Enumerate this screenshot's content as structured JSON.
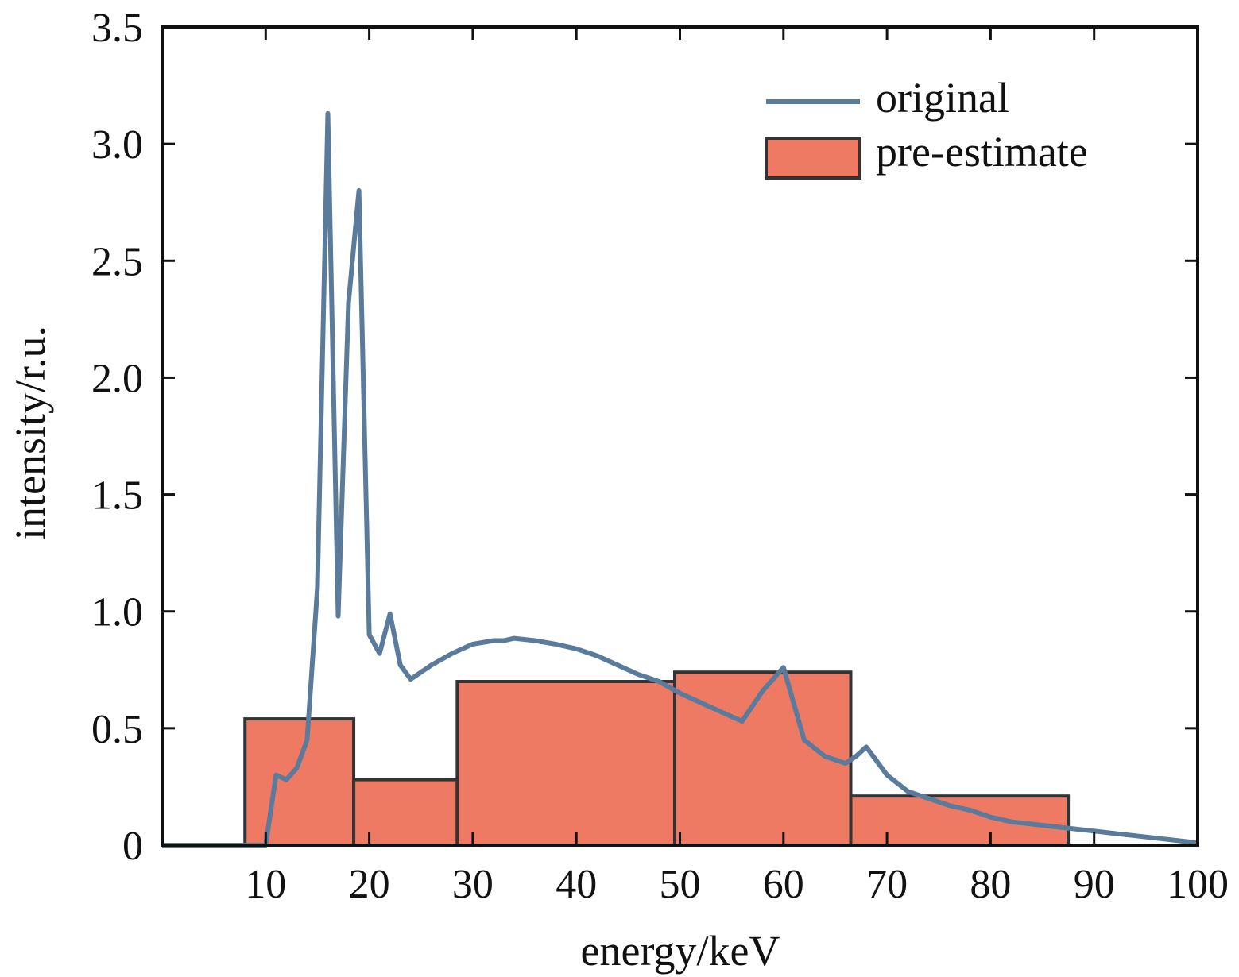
{
  "chart_data": {
    "type": "bar",
    "xlabel": "energy/keV",
    "ylabel": "intensity/r.u.",
    "xlim": [
      0,
      100
    ],
    "ylim": [
      0,
      3.5
    ],
    "xticks": [
      10,
      20,
      30,
      40,
      50,
      60,
      70,
      80,
      90,
      100
    ],
    "xtick_labels": [
      "10",
      "20",
      "30",
      "40",
      "50",
      "60",
      "70",
      "80",
      "90",
      "100"
    ],
    "yticks": [
      0,
      0.5,
      1.0,
      1.5,
      2.0,
      2.5,
      3.0,
      3.5
    ],
    "ytick_labels": [
      "0",
      "0.5",
      "1.0",
      "1.5",
      "2.0",
      "2.5",
      "3.0",
      "3.5"
    ],
    "grid": false,
    "legend_position": "top-right",
    "series": [
      {
        "name": "original",
        "type": "line",
        "color": "#5a7b9c",
        "x": [
          0,
          4,
          8,
          10,
          11,
          12,
          13,
          14,
          15,
          16,
          17,
          18,
          19,
          20,
          21,
          22,
          23,
          24,
          25,
          26,
          28,
          30,
          32,
          33,
          34,
          36,
          38,
          40,
          42,
          44,
          46,
          48,
          50,
          52,
          54,
          56,
          58,
          60,
          62,
          64,
          66,
          67,
          68,
          70,
          72,
          74,
          76,
          78,
          80,
          82,
          84,
          86,
          88,
          90,
          92,
          94,
          96,
          98,
          100
        ],
        "y": [
          0,
          0,
          0,
          0,
          0.3,
          0.28,
          0.33,
          0.45,
          1.1,
          3.13,
          0.98,
          2.32,
          2.8,
          0.9,
          0.82,
          0.99,
          0.77,
          0.71,
          0.74,
          0.77,
          0.82,
          0.86,
          0.875,
          0.875,
          0.885,
          0.875,
          0.86,
          0.84,
          0.81,
          0.77,
          0.73,
          0.7,
          0.65,
          0.61,
          0.57,
          0.53,
          0.66,
          0.76,
          0.45,
          0.38,
          0.35,
          0.38,
          0.42,
          0.3,
          0.23,
          0.2,
          0.17,
          0.15,
          0.12,
          0.1,
          0.09,
          0.08,
          0.07,
          0.06,
          0.05,
          0.04,
          0.03,
          0.02,
          0.01
        ]
      },
      {
        "name": "pre-estimate",
        "type": "bar",
        "color": "#ef7a64",
        "edgecolor": "#333333",
        "bins": [
          {
            "x0": 8,
            "x1": 18.5,
            "value": 0.54
          },
          {
            "x0": 18.5,
            "x1": 28.5,
            "value": 0.28
          },
          {
            "x0": 28.5,
            "x1": 49.5,
            "value": 0.7
          },
          {
            "x0": 49.5,
            "x1": 66.5,
            "value": 0.74
          },
          {
            "x0": 66.5,
            "x1": 87.5,
            "value": 0.21
          }
        ]
      }
    ]
  }
}
